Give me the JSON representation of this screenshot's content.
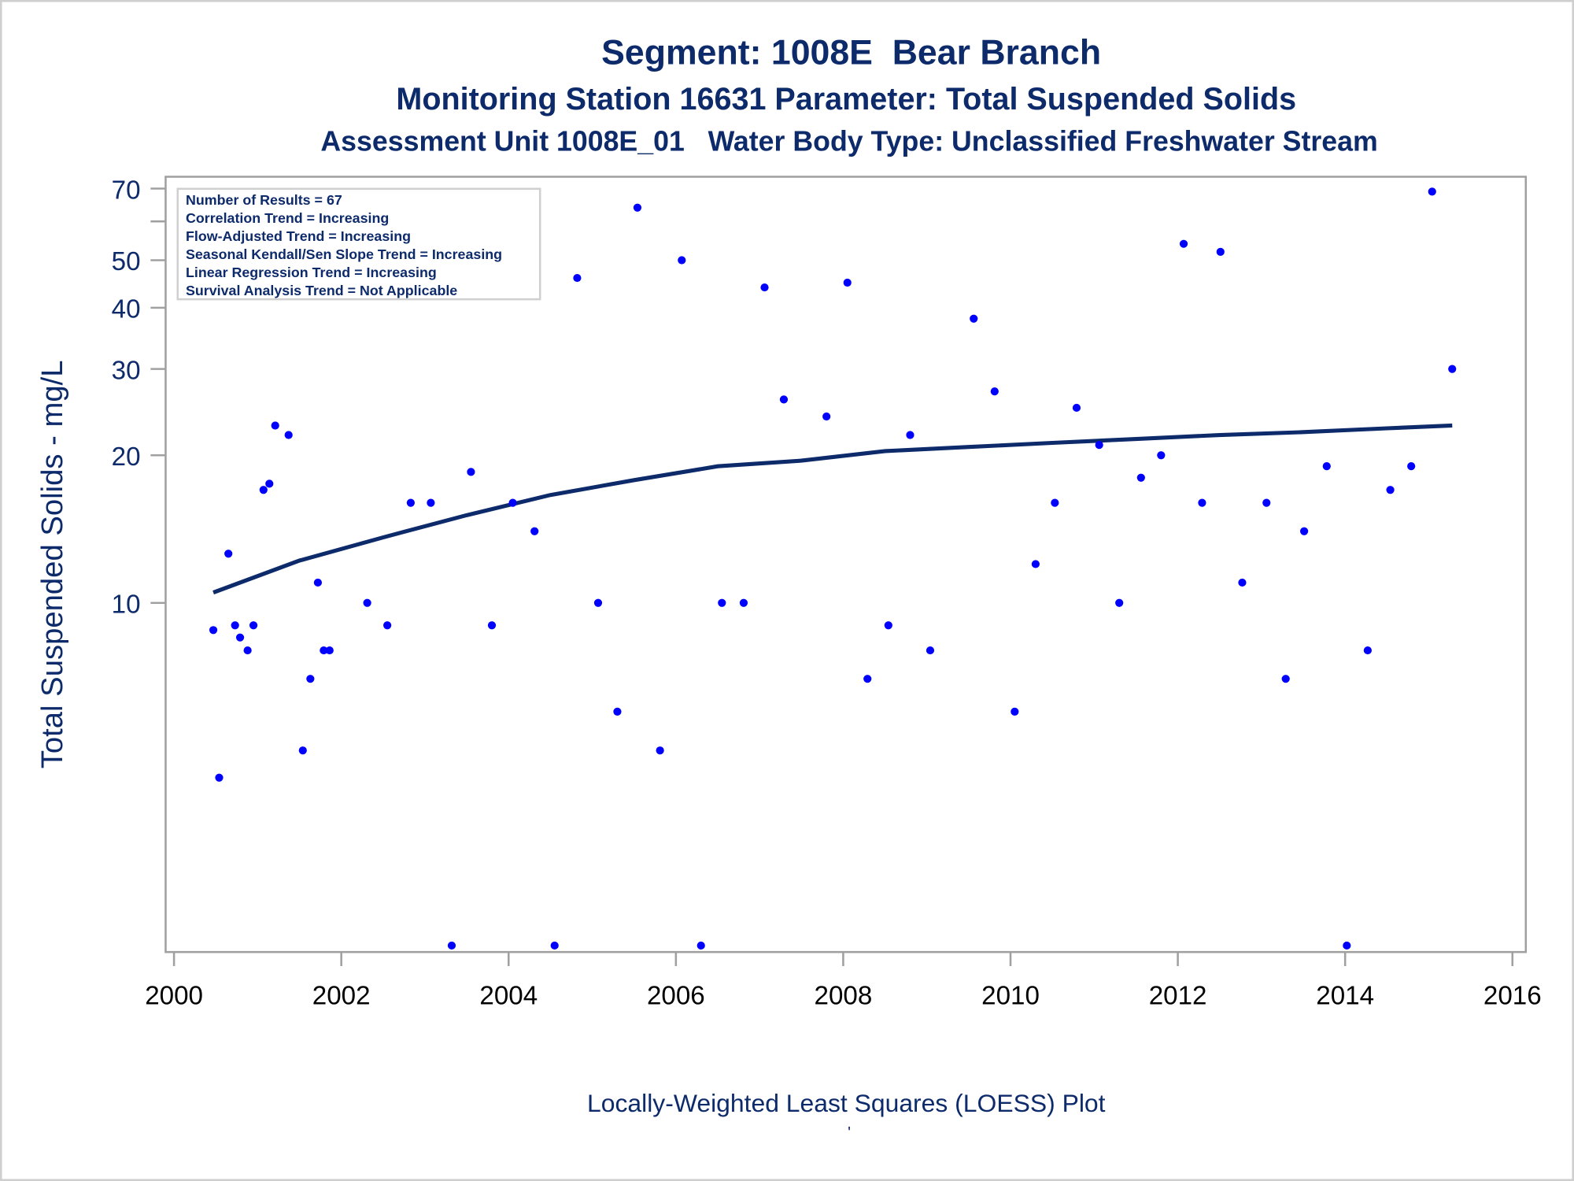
{
  "chart_data": {
    "type": "scatter",
    "title": "Segment: 1008E  Bear Branch",
    "subtitle": "Monitoring Station 16631 Parameter: Total Suspended Solids",
    "subtitle2": "Assessment Unit 1008E_01   Water Body Type: Unclassified Freshwater Stream",
    "xlabel": "Locally-Weighted Least Squares (LOESS) Plot",
    "ylabel": "Total Suspended Solids - mg/L",
    "footnote": "'",
    "yscale": "log",
    "xlim": [
      1999.9,
      2016.16
    ],
    "ylim": [
      1.94,
      74
    ],
    "xticks": [
      "2000",
      "2002",
      "2004",
      "2006",
      "2008",
      "2010",
      "2012",
      "2014",
      "2016"
    ],
    "yticks": [
      "70",
      "50",
      "40",
      "30",
      "20",
      "10"
    ],
    "yminor_ticks": [
      60
    ],
    "grid": false,
    "legend_placement": "top-left",
    "legend": [
      "Number of Results = 67",
      "Correlation Trend = Increasing",
      "Flow-Adjusted Trend = Increasing",
      "Seasonal Kendall/Sen Slope Trend = Increasing",
      "Linear Regression Trend = Increasing",
      "Survival Analysis Trend = Not Applicable"
    ],
    "colors": {
      "points": "#0000ff",
      "loess": "#0d2a6b",
      "text": "#0d2a6b"
    },
    "series": [
      {
        "name": "Results",
        "type": "scatter",
        "x": [
          2000.47,
          2000.54,
          2000.65,
          2000.73,
          2000.79,
          2000.88,
          2000.95,
          2001.07,
          2001.14,
          2001.21,
          2001.37,
          2001.54,
          2001.63,
          2001.72,
          2001.79,
          2001.86,
          2002.31,
          2002.55,
          2002.83,
          2003.07,
          2003.32,
          2003.55,
          2003.8,
          2004.05,
          2004.31,
          2004.55,
          2004.82,
          2005.07,
          2005.3,
          2005.54,
          2005.81,
          2006.07,
          2006.3,
          2006.55,
          2006.81,
          2007.06,
          2007.29,
          2007.8,
          2008.05,
          2008.29,
          2008.54,
          2008.8,
          2009.04,
          2009.56,
          2009.81,
          2010.05,
          2010.3,
          2010.53,
          2010.79,
          2011.06,
          2011.3,
          2011.56,
          2011.8,
          2012.07,
          2012.29,
          2012.51,
          2012.77,
          2013.06,
          2013.29,
          2013.51,
          2013.78,
          2014.02,
          2014.27,
          2014.54,
          2014.79,
          2015.04,
          2015.28
        ],
        "y": [
          8.8,
          4.4,
          12.6,
          9,
          8.5,
          8,
          9,
          17,
          17.5,
          23,
          22,
          5,
          7,
          11,
          8,
          8,
          10,
          9,
          16,
          16,
          2,
          18.5,
          9,
          16,
          14,
          2,
          46,
          10,
          6,
          64,
          5,
          50,
          2,
          10,
          10,
          44,
          26,
          24,
          45,
          7,
          9,
          22,
          8,
          38,
          27,
          6,
          12,
          16,
          25,
          21,
          10,
          18,
          20,
          54,
          16,
          52,
          11,
          16,
          7,
          14,
          19,
          2,
          8,
          17,
          19,
          69,
          30
        ]
      },
      {
        "name": "LOESS",
        "type": "line",
        "x": [
          2000.47,
          2001.5,
          2002.5,
          2003.5,
          2004.5,
          2005.5,
          2006.5,
          2007.5,
          2008.5,
          2009.5,
          2010.5,
          2011.5,
          2012.5,
          2013.5,
          2014.5,
          2015.28
        ],
        "y": [
          10.5,
          12.2,
          13.6,
          15.1,
          16.6,
          17.8,
          19.0,
          19.5,
          20.4,
          20.8,
          21.2,
          21.6,
          22.0,
          22.3,
          22.7,
          23.0
        ]
      }
    ]
  }
}
